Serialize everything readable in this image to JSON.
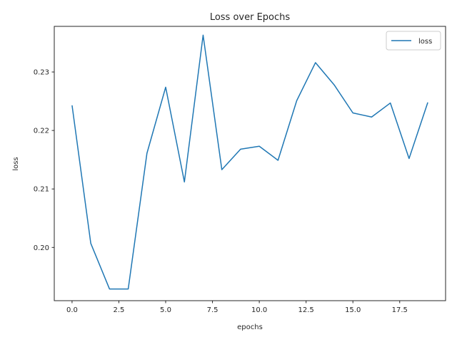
{
  "chart_data": {
    "type": "line",
    "title": "Loss over Epochs",
    "xlabel": "epochs",
    "ylabel": "loss",
    "xlim": [
      -0.95,
      19.95
    ],
    "ylim": [
      0.1909,
      0.2378
    ],
    "xticks": [
      0.0,
      2.5,
      5.0,
      7.5,
      10.0,
      12.5,
      15.0,
      17.5
    ],
    "xtick_labels": [
      "0.0",
      "2.5",
      "5.0",
      "7.5",
      "10.0",
      "12.5",
      "15.0",
      "17.5"
    ],
    "yticks": [
      0.2,
      0.21,
      0.22,
      0.23
    ],
    "ytick_labels": [
      "0.20",
      "0.21",
      "0.22",
      "0.23"
    ],
    "grid": false,
    "legend_position": "top-right",
    "colors": {
      "line": "#1f77b4",
      "axis": "#262626"
    },
    "series": [
      {
        "name": "loss",
        "x": [
          0,
          1,
          2,
          3,
          4,
          5,
          6,
          7,
          8,
          9,
          10,
          11,
          12,
          13,
          14,
          15,
          16,
          17,
          18,
          19
        ],
        "values": [
          0.2243,
          0.2007,
          0.1929,
          0.1929,
          0.2161,
          0.2274,
          0.2112,
          0.2363,
          0.2133,
          0.2168,
          0.2173,
          0.2149,
          0.2251,
          0.2316,
          0.2278,
          0.223,
          0.2223,
          0.2247,
          0.2152,
          0.2248
        ]
      }
    ]
  }
}
